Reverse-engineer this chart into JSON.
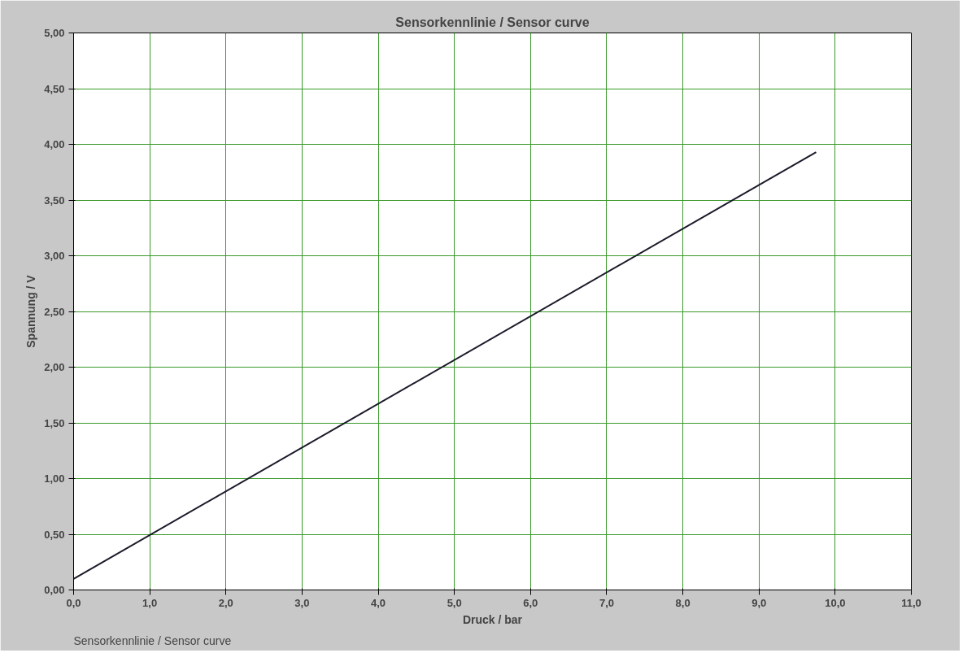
{
  "chart_data": {
    "type": "line",
    "title": "Sensorkennlinie / Sensor curve",
    "xlabel": "Druck / bar",
    "ylabel": "Spannung / V",
    "x": [
      0.0,
      9.75
    ],
    "series": [
      {
        "color": "#1a1a2a",
        "values": [
          0.1,
          3.93
        ]
      }
    ],
    "xlim": [
      0,
      11
    ],
    "ylim": [
      0,
      5
    ],
    "xticks": [
      {
        "value": 0,
        "label": "0,0"
      },
      {
        "value": 1,
        "label": "1,0"
      },
      {
        "value": 2,
        "label": "2,0"
      },
      {
        "value": 3,
        "label": "3,0"
      },
      {
        "value": 4,
        "label": "4,0"
      },
      {
        "value": 5,
        "label": "5,0"
      },
      {
        "value": 6,
        "label": "6,0"
      },
      {
        "value": 7,
        "label": "7,0"
      },
      {
        "value": 8,
        "label": "8,0"
      },
      {
        "value": 9,
        "label": "9,0"
      },
      {
        "value": 10,
        "label": "10,0"
      },
      {
        "value": 11,
        "label": "11,0"
      }
    ],
    "yticks": [
      {
        "value": 0,
        "label": "0,00"
      },
      {
        "value": 0.5,
        "label": "0,50"
      },
      {
        "value": 1,
        "label": "1,00"
      },
      {
        "value": 1.5,
        "label": "1,50"
      },
      {
        "value": 2,
        "label": "2,00"
      },
      {
        "value": 2.5,
        "label": "2,50"
      },
      {
        "value": 3,
        "label": "3,00"
      },
      {
        "value": 3.5,
        "label": "3,50"
      },
      {
        "value": 4,
        "label": "4,00"
      },
      {
        "value": 4.5,
        "label": "4,50"
      },
      {
        "value": 5,
        "label": "5,00"
      }
    ],
    "grid": true,
    "annotations": [
      "Sensorkennlinie / Sensor curve"
    ]
  }
}
